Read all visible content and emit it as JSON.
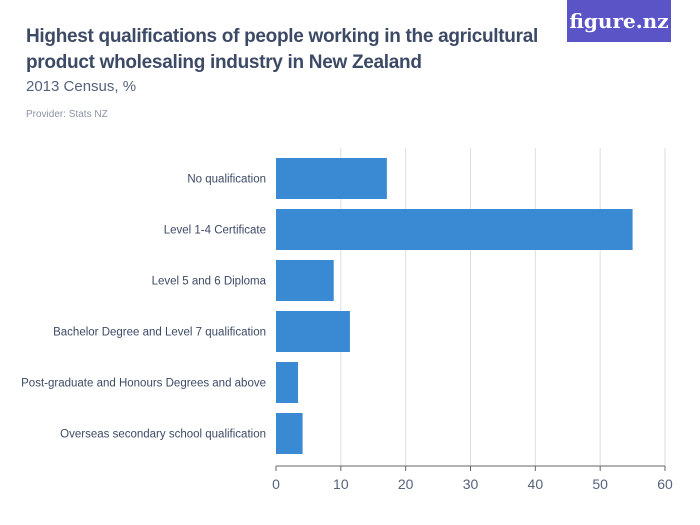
{
  "header": {
    "title": "Highest qualifications of people working in the agricultural product wholesaling industry in New Zealand",
    "subtitle": "2013 Census, %",
    "provider": "Provider: Stats NZ",
    "logo": "figure.nz"
  },
  "colors": {
    "bar": "#3a89d3",
    "grid": "#dedede",
    "axis": "#666666",
    "text": "#3d4a66",
    "logo_bg": "#5b54c6"
  },
  "chart_data": {
    "type": "bar",
    "orientation": "horizontal",
    "categories": [
      "No qualification",
      "Level 1-4 Certificate",
      "Level 5 and 6 Diploma",
      "Bachelor Degree and Level 7 qualification",
      "Post-graduate and Honours Degrees and above",
      "Overseas secondary school qualification"
    ],
    "values": [
      17.1,
      55.0,
      8.9,
      11.4,
      3.4,
      4.1
    ],
    "xlim": [
      0,
      60
    ],
    "xticks": [
      0,
      10,
      20,
      30,
      40,
      50,
      60
    ],
    "grid": true,
    "xlabel": "",
    "ylabel": ""
  }
}
